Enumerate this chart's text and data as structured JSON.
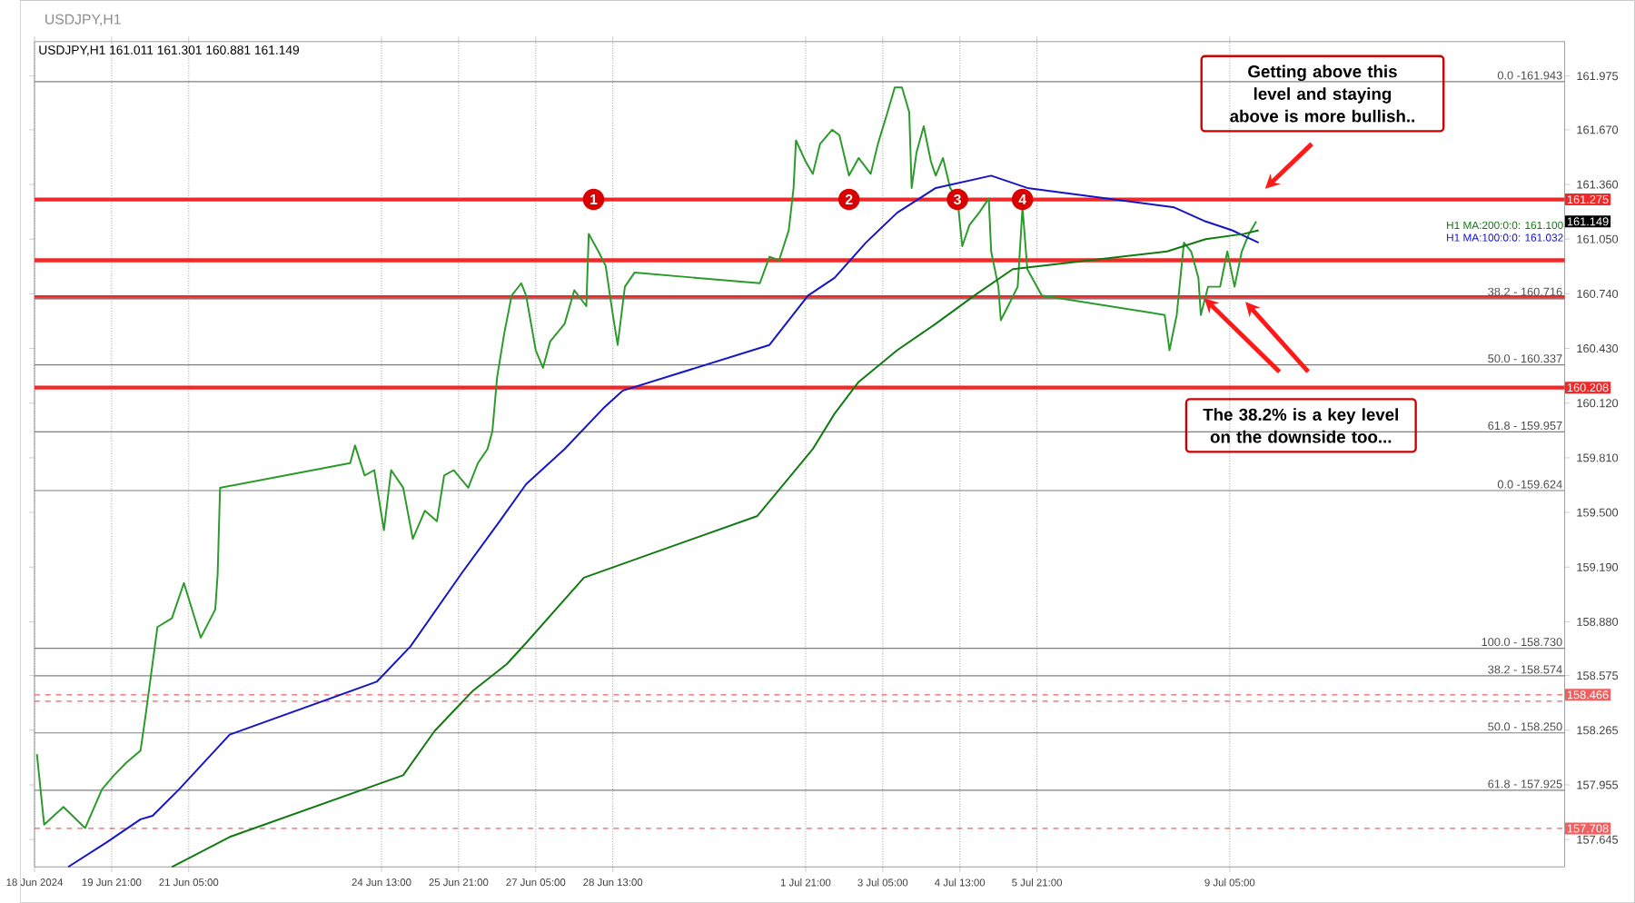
{
  "chart_data": {
    "type": "line",
    "title": "USDJPY,H1",
    "subtitle": "USDJPY,H1  161.011 161.301 160.881 161.149",
    "xlim": [
      "2024-06-18T13:00",
      "2024-07-15T00:00"
    ],
    "ylim": [
      157.49,
      162.17
    ],
    "xticks": [
      {
        "value": "2024-06-18T13:00",
        "label": "18 Jun 2024"
      },
      {
        "value": "2024-06-19T21:00",
        "label": "19 Jun 21:00"
      },
      {
        "value": "2024-06-21T05:00",
        "label": "21 Jun 05:00"
      },
      {
        "value": "2024-06-24T13:00",
        "label": "24 Jun 13:00"
      },
      {
        "value": "2024-06-25T21:00",
        "label": "25 Jun 21:00"
      },
      {
        "value": "2024-06-27T05:00",
        "label": "27 Jun 05:00"
      },
      {
        "value": "2024-06-28T13:00",
        "label": "28 Jun 13:00"
      },
      {
        "value": "2024-07-01T21:00",
        "label": "1 Jul 21:00"
      },
      {
        "value": "2024-07-03T05:00",
        "label": "3 Jul 05:00"
      },
      {
        "value": "2024-07-04T13:00",
        "label": "4 Jul 13:00"
      },
      {
        "value": "2024-07-05T21:00",
        "label": "5 Jul 21:00"
      },
      {
        "value": "2024-07-09T05:00",
        "label": "9 Jul 05:00"
      }
    ],
    "yticks": [
      {
        "value": 157.645,
        "label": "157.645"
      },
      {
        "value": 157.955,
        "label": "157.955"
      },
      {
        "value": 158.265,
        "label": "158.265"
      },
      {
        "value": 158.575,
        "label": "158.575"
      },
      {
        "value": 158.88,
        "label": "158.880"
      },
      {
        "value": 159.19,
        "label": "159.190"
      },
      {
        "value": 159.5,
        "label": "159.500"
      },
      {
        "value": 159.81,
        "label": "159.810"
      },
      {
        "value": 160.12,
        "label": "160.120"
      },
      {
        "value": 160.43,
        "label": "160.430"
      },
      {
        "value": 160.74,
        "label": "160.740"
      },
      {
        "value": 161.05,
        "label": "161.050"
      },
      {
        "value": 161.36,
        "label": "161.360"
      },
      {
        "value": 161.67,
        "label": "161.670"
      },
      {
        "value": 161.975,
        "label": "161.975"
      }
    ],
    "grid": "x",
    "series": [
      {
        "color": "#2a9a2a",
        "x": [
          "2024-06-18T14:00",
          "2024-06-18T17:00",
          "2024-06-19T01:00",
          "2024-06-19T10:00",
          "2024-06-19T17:00",
          "2024-06-19T22:00",
          "2024-06-20T03:00",
          "2024-06-20T09:00",
          "2024-06-20T11:00",
          "2024-06-20T12:00",
          "2024-06-20T16:00",
          "2024-06-20T22:00",
          "2024-06-21T03:00",
          "2024-06-21T10:00",
          "2024-06-21T16:00",
          "2024-06-21T17:00",
          "2024-06-21T18:00",
          "2024-06-24T00:00",
          "2024-06-24T02:00",
          "2024-06-24T06:00",
          "2024-06-24T10:00",
          "2024-06-24T14:00",
          "2024-06-24T17:00",
          "2024-06-24T22:00",
          "2024-06-25T02:00",
          "2024-06-25T07:00",
          "2024-06-25T12:00",
          "2024-06-25T15:00",
          "2024-06-25T19:00",
          "2024-06-26T01:00",
          "2024-06-26T05:00",
          "2024-06-26T09:00",
          "2024-06-26T11:00",
          "2024-06-26T13:00",
          "2024-06-26T16:00",
          "2024-06-26T19:00",
          "2024-06-26T23:00",
          "2024-06-27T01:00",
          "2024-06-27T05:00",
          "2024-06-27T08:00",
          "2024-06-27T11:00",
          "2024-06-27T17:00",
          "2024-06-27T21:00",
          "2024-06-28T02:00",
          "2024-06-28T03:00",
          "2024-06-28T07:00",
          "2024-06-28T10:00",
          "2024-06-28T13:00",
          "2024-06-28T15:00",
          "2024-06-28T18:00",
          "2024-06-28T22:00",
          "2024-07-01T02:00",
          "2024-07-01T06:00",
          "2024-07-01T10:00",
          "2024-07-01T14:00",
          "2024-07-01T16:00",
          "2024-07-01T17:00",
          "2024-07-01T21:00",
          "2024-07-02T00:00",
          "2024-07-02T03:00",
          "2024-07-02T08:00",
          "2024-07-02T11:00",
          "2024-07-02T15:00",
          "2024-07-02T19:00",
          "2024-07-03T00:00",
          "2024-07-03T03:00",
          "2024-07-03T07:00",
          "2024-07-03T10:00",
          "2024-07-03T13:00",
          "2024-07-03T16:00",
          "2024-07-03T17:00",
          "2024-07-03T19:00",
          "2024-07-03T22:00",
          "2024-07-04T01:00",
          "2024-07-04T03:00",
          "2024-07-04T06:00",
          "2024-07-04T09:00",
          "2024-07-04T12:00",
          "2024-07-04T14:00",
          "2024-07-04T17:00",
          "2024-07-04T21:00",
          "2024-07-05T01:00",
          "2024-07-05T02:00",
          "2024-07-05T05:00",
          "2024-07-05T06:00",
          "2024-07-05T09:00",
          "2024-07-05T13:00",
          "2024-07-05T15:00",
          "2024-07-05T17:00",
          "2024-07-05T23:00",
          "2024-07-08T02:00",
          "2024-07-08T04:00",
          "2024-07-08T07:00",
          "2024-07-08T10:00",
          "2024-07-08T13:00",
          "2024-07-08T16:00",
          "2024-07-08T17:00",
          "2024-07-08T20:00",
          "2024-07-09T01:00",
          "2024-07-09T04:00",
          "2024-07-09T07:00",
          "2024-07-09T10:00",
          "2024-07-09T13:00",
          "2024-07-09T16:00"
        ],
        "values": [
          158.13,
          157.73,
          157.83,
          157.71,
          157.93,
          158.01,
          158.08,
          158.15,
          158.34,
          158.44,
          158.85,
          158.9,
          159.1,
          158.79,
          158.95,
          159.15,
          159.64,
          159.78,
          159.88,
          159.71,
          159.74,
          159.4,
          159.74,
          159.64,
          159.35,
          159.51,
          159.45,
          159.71,
          159.74,
          159.64,
          159.78,
          159.86,
          159.96,
          160.27,
          160.52,
          160.73,
          160.8,
          160.73,
          160.42,
          160.32,
          160.47,
          160.57,
          160.76,
          160.67,
          161.08,
          160.98,
          160.9,
          160.62,
          160.45,
          160.78,
          160.86,
          160.8,
          160.95,
          160.93,
          161.1,
          161.34,
          161.61,
          161.49,
          161.42,
          161.59,
          161.67,
          161.64,
          161.41,
          161.51,
          161.42,
          161.59,
          161.77,
          161.91,
          161.91,
          161.77,
          161.34,
          161.54,
          161.69,
          161.49,
          161.41,
          161.51,
          161.34,
          161.28,
          161.01,
          161.13,
          161.2,
          161.28,
          160.98,
          160.78,
          160.59,
          160.67,
          160.78,
          161.23,
          160.88,
          160.73,
          160.62,
          160.42,
          160.62,
          161.03,
          160.98,
          160.83,
          160.62,
          160.78,
          160.78,
          160.98,
          160.78,
          160.98,
          161.08,
          161.15
        ]
      },
      {
        "name": "H1 MA:100:0:0: 161.032",
        "color": "#1414c8",
        "x": [
          "2024-06-19T03:00",
          "2024-06-19T19:00",
          "2024-06-20T09:00",
          "2024-06-20T14:00",
          "2024-06-21T01:00",
          "2024-06-21T22:00",
          "2024-06-24T11:00",
          "2024-06-25T01:00",
          "2024-06-25T22:00",
          "2024-06-26T14:00",
          "2024-06-27T01:00",
          "2024-06-27T17:00",
          "2024-06-28T09:00",
          "2024-06-28T17:00",
          "2024-07-01T06:00",
          "2024-07-01T22:00",
          "2024-07-02T09:00",
          "2024-07-02T22:00",
          "2024-07-03T11:00",
          "2024-07-04T03:00",
          "2024-07-05T02:00",
          "2024-07-05T17:00",
          "2024-07-08T06:00",
          "2024-07-08T19:00",
          "2024-07-09T06:00",
          "2024-07-09T17:00"
        ],
        "values": [
          157.49,
          157.63,
          157.76,
          157.78,
          157.93,
          158.24,
          158.54,
          158.74,
          159.15,
          159.45,
          159.66,
          159.86,
          160.09,
          160.19,
          160.45,
          160.73,
          160.83,
          161.03,
          161.2,
          161.34,
          161.41,
          161.34,
          161.23,
          161.15,
          161.1,
          161.03
        ]
      },
      {
        "name": "H1 MA:200:0:0: 161.100",
        "color": "#107a10",
        "x": [
          "2024-06-20T22:00",
          "2024-06-21T22:00",
          "2024-06-24T22:00",
          "2024-06-25T11:00",
          "2024-06-26T03:00",
          "2024-06-26T17:00",
          "2024-06-27T01:00",
          "2024-06-28T01:00",
          "2024-07-01T01:00",
          "2024-07-02T00:00",
          "2024-07-02T09:00",
          "2024-07-02T19:00",
          "2024-07-03T11:00",
          "2024-07-04T03:00",
          "2024-07-04T19:00",
          "2024-07-05T11:00",
          "2024-07-08T03:00",
          "2024-07-08T19:00",
          "2024-07-09T11:00",
          "2024-07-09T17:00"
        ],
        "values": [
          157.49,
          157.66,
          158.01,
          158.26,
          158.49,
          158.64,
          158.76,
          159.13,
          159.48,
          159.86,
          160.06,
          160.24,
          160.42,
          160.57,
          160.73,
          160.88,
          160.98,
          161.05,
          161.08,
          161.1
        ]
      }
    ],
    "ref_lines": [
      {
        "axis": "y",
        "value": 161.943,
        "color": "#808080"
      },
      {
        "axis": "y",
        "value": 161.275,
        "label": "161.275",
        "color": "#f02828"
      },
      {
        "axis": "y",
        "value": 160.93,
        "color": "#f02828"
      },
      {
        "axis": "y",
        "value": 160.72,
        "color": "#f02828"
      },
      {
        "axis": "y",
        "value": 160.716,
        "color": "#808080"
      },
      {
        "axis": "y",
        "value": 160.337,
        "color": "#808080"
      },
      {
        "axis": "y",
        "value": 160.208,
        "label": "160.208",
        "color": "#f02828"
      },
      {
        "axis": "y",
        "value": 159.957,
        "color": "#808080"
      },
      {
        "axis": "y",
        "value": 159.624,
        "color": "#808080"
      },
      {
        "axis": "y",
        "value": 158.73,
        "color": "#808080"
      },
      {
        "axis": "y",
        "value": 158.574,
        "color": "#808080"
      },
      {
        "axis": "y",
        "value": 158.466,
        "label": "158.466",
        "color": "#f06060",
        "line_style": "dashed"
      },
      {
        "axis": "y",
        "value": 158.43,
        "color": "#f06060",
        "line_style": "dashed"
      },
      {
        "axis": "y",
        "value": 158.25,
        "color": "#808080"
      },
      {
        "axis": "y",
        "value": 157.925,
        "color": "#808080"
      },
      {
        "axis": "y",
        "value": 157.708,
        "label": "157.708",
        "color": "#f06060",
        "line_style": "dashed"
      }
    ],
    "annotations": [
      "Getting above this level and staying above is more bullish..",
      "The 38.2% is a key level on the downside too...",
      {
        "text": "1",
        "x": "2024-06-28T05:00",
        "y": 161.275
      },
      {
        "text": "2",
        "x": "2024-07-02T15:00",
        "y": 161.275
      },
      {
        "text": "3",
        "x": "2024-07-04T12:00",
        "y": 161.275
      },
      {
        "text": "4",
        "x": "2024-07-05T15:00",
        "y": 161.275
      },
      "161.149",
      {
        "text": "0.0 -161.943",
        "x": "2024-07-15T00:00",
        "y": 161.943
      },
      {
        "text": "38.2 - 160.716",
        "x": "2024-07-15T00:00",
        "y": 160.716
      },
      {
        "text": "50.0 - 160.337",
        "x": "2024-07-15T00:00",
        "y": 160.337
      },
      {
        "text": "61.8 - 159.957",
        "x": "2024-07-15T00:00",
        "y": 159.957
      },
      {
        "text": "0.0 -159.624",
        "x": "2024-07-15T00:00",
        "y": 159.624
      },
      {
        "text": "100.0 - 158.730",
        "x": "2024-07-15T00:00",
        "y": 158.73
      },
      {
        "text": "38.2 - 158.574",
        "x": "2024-07-15T00:00",
        "y": 158.574
      },
      {
        "text": "50.0 - 158.250",
        "x": "2024-07-15T00:00",
        "y": 158.25
      },
      {
        "text": "61.8 - 157.925",
        "x": "2024-07-15T00:00",
        "y": 157.925
      }
    ]
  }
}
